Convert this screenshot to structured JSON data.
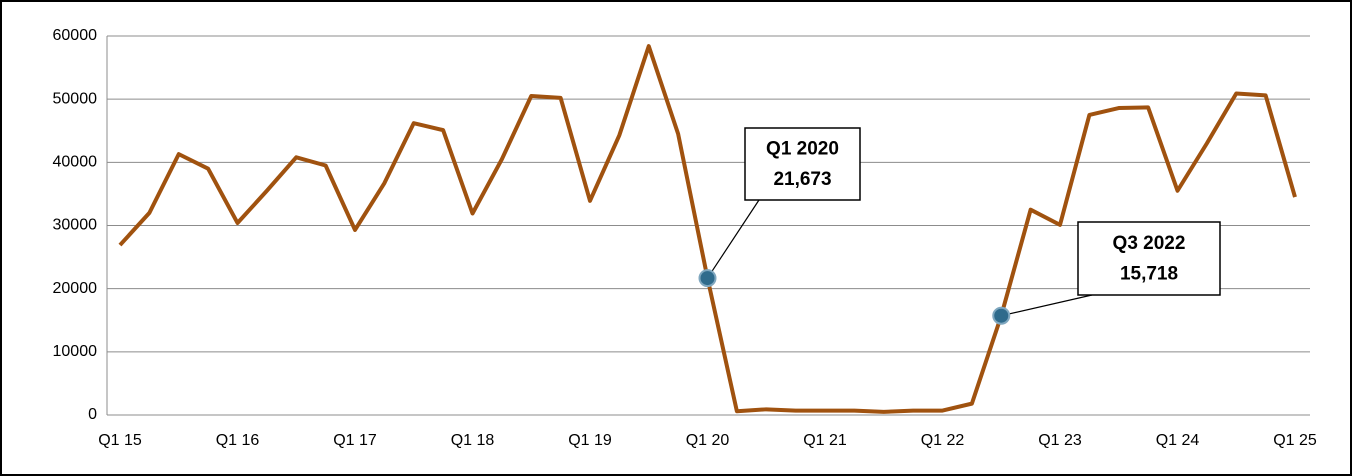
{
  "chart_data": {
    "type": "line",
    "categories": [
      "Q1 15",
      null,
      null,
      null,
      "Q1 16",
      null,
      null,
      null,
      "Q1 17",
      null,
      null,
      null,
      "Q1 18",
      null,
      null,
      null,
      "Q1 19",
      null,
      null,
      null,
      "Q1 20",
      null,
      null,
      null,
      "Q1 21",
      null,
      null,
      null,
      "Q1 22",
      null,
      null,
      null,
      "Q1 23",
      null,
      null,
      null,
      "Q1 24",
      null,
      null,
      null,
      "Q1 25"
    ],
    "series": [
      {
        "color": "#a0520f",
        "values": [
          26900,
          32000,
          41300,
          39000,
          30400,
          35500,
          40800,
          39500,
          29300,
          36700,
          46200,
          45100,
          31900,
          40500,
          50500,
          50200,
          33900,
          44300,
          58400,
          44500,
          21673,
          600,
          900,
          700,
          700,
          700,
          500,
          700,
          700,
          1800,
          15718,
          32500,
          30100,
          47500,
          48600,
          48700,
          35500,
          43000,
          50900,
          50600,
          34500
        ],
        "point_labels": [
          null,
          null,
          null,
          null,
          null,
          null,
          null,
          null,
          null,
          null,
          null,
          null,
          null,
          null,
          null,
          null,
          null,
          null,
          null,
          null,
          "Q1 2020",
          null,
          null,
          null,
          null,
          null,
          null,
          null,
          null,
          null,
          "Q3 2022",
          null,
          null,
          null,
          null,
          null,
          null,
          null,
          null,
          null,
          null
        ],
        "value_labels": [
          null,
          null,
          null,
          null,
          null,
          null,
          null,
          null,
          null,
          null,
          null,
          null,
          null,
          null,
          null,
          null,
          null,
          null,
          null,
          null,
          "21,673",
          null,
          null,
          null,
          null,
          null,
          null,
          null,
          null,
          null,
          "15,718",
          null,
          null,
          null,
          null,
          null,
          null,
          null,
          null,
          null,
          null
        ],
        "marker_color": "#2f6b8c"
      }
    ],
    "ylim": [
      0,
      60000
    ],
    "yticks": [
      0,
      10000,
      20000,
      30000,
      40000,
      50000,
      60000
    ],
    "grid": true
  }
}
